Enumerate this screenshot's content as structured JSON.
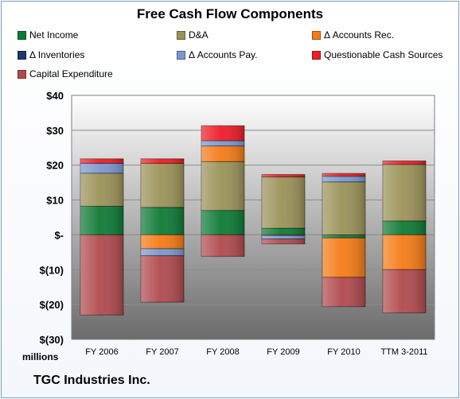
{
  "chart_data": {
    "type": "bar",
    "stacked": true,
    "title": "Free Cash Flow Components",
    "units_label": "millions",
    "categories": [
      "FY 2006",
      "FY 2007",
      "FY 2008",
      "FY 2009",
      "FY 2010",
      "TTM 3-2011"
    ],
    "ylim": [
      -30,
      40
    ],
    "yticks": [
      40,
      30,
      20,
      10,
      0,
      -10,
      -20,
      -30
    ],
    "ytick_labels": [
      "$40",
      "$30",
      "$20",
      "$10",
      "$-",
      "$(10)",
      "$(20)",
      "$(30)"
    ],
    "grid": true,
    "legend_position": "top",
    "series": [
      {
        "name": "Net Income",
        "color": "#0e7a36",
        "values": [
          8.2,
          7.9,
          7.0,
          1.9,
          -0.9,
          4.0
        ]
      },
      {
        "name": "D&A",
        "color": "#9b9258",
        "values": [
          9.5,
          12.6,
          14.0,
          14.7,
          15.2,
          16.2
        ]
      },
      {
        "name": "Δ Accounts Rec.",
        "color": "#f47b16",
        "values": [
          0.0,
          -4.0,
          4.5,
          -0.2,
          -11.3,
          -10.0
        ]
      },
      {
        "name": "Δ Inventories",
        "color": "#1f3864",
        "values": [
          0.0,
          0.0,
          0.0,
          0.0,
          0.0,
          0.0
        ]
      },
      {
        "name": "Δ Accounts Pay.",
        "color": "#7a98cf",
        "values": [
          2.8,
          -2.0,
          1.5,
          -1.0,
          1.6,
          0.0
        ]
      },
      {
        "name": "Questionable Cash Sources",
        "color": "#ee1c25",
        "values": [
          1.3,
          1.3,
          4.3,
          0.7,
          0.8,
          1.0
        ]
      },
      {
        "name": "Capital Expenditure",
        "color": "#b04a4d",
        "values": [
          -23.0,
          -13.3,
          -6.2,
          -1.4,
          -8.4,
          -12.4
        ]
      }
    ]
  },
  "footer": {
    "company": "TGC Industries Inc."
  }
}
